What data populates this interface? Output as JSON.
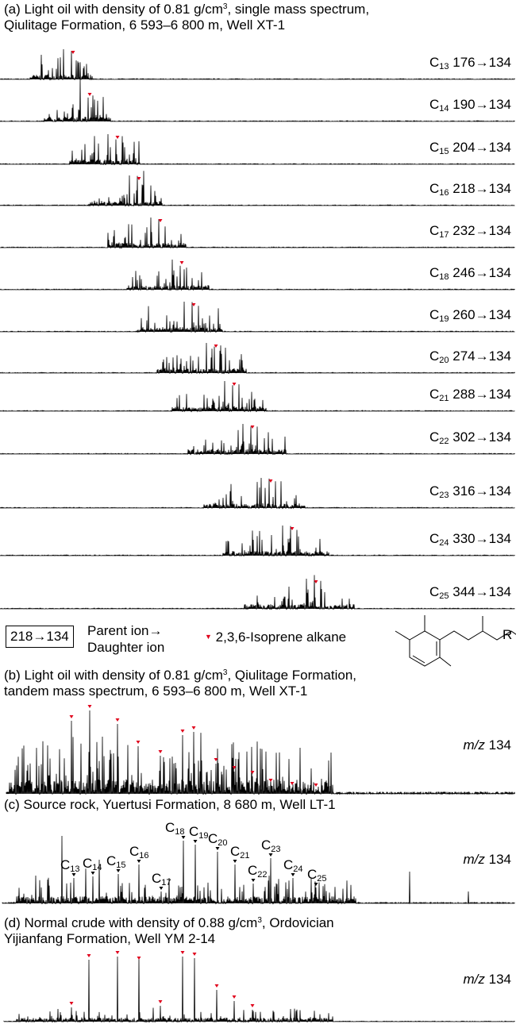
{
  "panels": {
    "a": {
      "title_1": "(a)  Light oil with density of 0.81 g/cm",
      "title_sup": "3",
      "title_1b": ", single mass spectrum,",
      "title_2": "Qiulitage Formation, 6 593–6 800 m, Well XT-1"
    },
    "b": {
      "title_1": "(b) Light oil with density of 0.81 g/cm",
      "title_sup": "3",
      "title_1b": ", Qiulitage Formation,",
      "title_2": "tandem mass spectrum, 6 593–6 800 m, Well XT-1",
      "mz_italic": "m/z",
      "mz_value": "134"
    },
    "c": {
      "title_1": "(c) Source rock, Yuertusi Formation, 8 680 m, Well LT-1",
      "mz_italic": "m/z",
      "mz_value": "134"
    },
    "d": {
      "title_1": "(d) Normal crude with density of 0.88 g/cm",
      "title_sup": "3",
      "title_1b": ", Ordovician",
      "title_2": "Yijianfang Formation, Well YM 2-14",
      "mz_italic": "m/z",
      "mz_value": "134"
    }
  },
  "legend": {
    "box_label": "218→134",
    "parent_ion": "Parent ion→",
    "daughter_ion": "Daughter ion",
    "marker_label": "2,3,6-Isoprene alkane",
    "structure_r": "R"
  },
  "colors": {
    "trace": "#000000",
    "marker": "#e0001b",
    "marker_c": "#000000"
  },
  "chart_data": [
    {
      "type": "line",
      "panel": "a",
      "grid": false,
      "axes_visible": false,
      "series": [
        {
          "name": "C13 176→134",
          "carbon": "13",
          "transition": "176→134"
        },
        {
          "name": "C14 190→134",
          "carbon": "14",
          "transition": "190→134"
        },
        {
          "name": "C15 204→134",
          "carbon": "15",
          "transition": "204→134"
        },
        {
          "name": "C16 218→134",
          "carbon": "16",
          "transition": "218→134"
        },
        {
          "name": "C17 232→134",
          "carbon": "17",
          "transition": "232→134"
        },
        {
          "name": "C18 246→134",
          "carbon": "18",
          "transition": "246→134"
        },
        {
          "name": "C19 260→134",
          "carbon": "19",
          "transition": "260→134"
        },
        {
          "name": "C20 274→134",
          "carbon": "20",
          "transition": "274→134"
        },
        {
          "name": "C21 288→134",
          "carbon": "21",
          "transition": "288→134"
        },
        {
          "name": "C22 302→134",
          "carbon": "22",
          "transition": "302→134"
        },
        {
          "name": "C23 316→134",
          "carbon": "23",
          "transition": "316→134"
        },
        {
          "name": "C24 330→134",
          "carbon": "24",
          "transition": "330→134"
        },
        {
          "name": "C25 344→134",
          "carbon": "25",
          "transition": "344→134"
        }
      ]
    },
    {
      "type": "line",
      "panel": "b",
      "series_label": "m/z 134",
      "marked_peaks": 13,
      "marker": "red-triangle"
    },
    {
      "type": "line",
      "panel": "c",
      "series_label": "m/z 134",
      "peak_labels": [
        "13",
        "14",
        "15",
        "16",
        "17",
        "18",
        "19",
        "20",
        "21",
        "22",
        "23",
        "24",
        "25"
      ],
      "marker": "black-triangle"
    },
    {
      "type": "line",
      "panel": "d",
      "series_label": "m/z 134",
      "marked_peaks": 10,
      "marker": "red-triangle"
    }
  ]
}
